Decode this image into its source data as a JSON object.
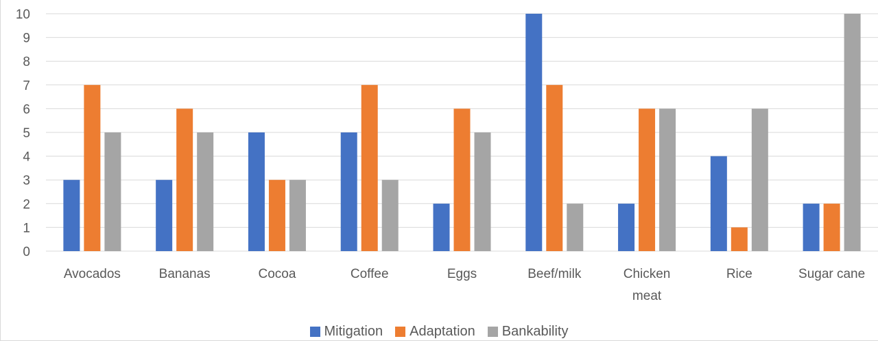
{
  "chart_data": {
    "type": "bar",
    "categories": [
      "Avocados",
      "Bananas",
      "Cocoa",
      "Coffee",
      "Eggs",
      "Beef/milk",
      "Chicken meat",
      "Rice",
      "Sugar cane"
    ],
    "category_lines": [
      [
        "Avocados"
      ],
      [
        "Bananas"
      ],
      [
        "Cocoa"
      ],
      [
        "Coffee"
      ],
      [
        "Eggs"
      ],
      [
        "Beef/milk"
      ],
      [
        "Chicken",
        "meat"
      ],
      [
        "Rice"
      ],
      [
        "Sugar cane"
      ]
    ],
    "series": [
      {
        "name": "Mitigation",
        "color": "#4472c4",
        "values": [
          3,
          3,
          5,
          5,
          2,
          10,
          2,
          4,
          2
        ]
      },
      {
        "name": "Adaptation",
        "color": "#ed7d31",
        "values": [
          7,
          6,
          3,
          7,
          6,
          7,
          6,
          1,
          2
        ]
      },
      {
        "name": "Bankability",
        "color": "#a5a5a5",
        "values": [
          5,
          5,
          3,
          3,
          5,
          2,
          6,
          6,
          10
        ]
      }
    ],
    "ylim": [
      0,
      10
    ],
    "yticks": [
      "0",
      "1",
      "2",
      "3",
      "4",
      "5",
      "6",
      "7",
      "8",
      "9",
      "10"
    ],
    "grid": true,
    "legend_position": "bottom",
    "title": "",
    "xlabel": "",
    "ylabel": ""
  }
}
